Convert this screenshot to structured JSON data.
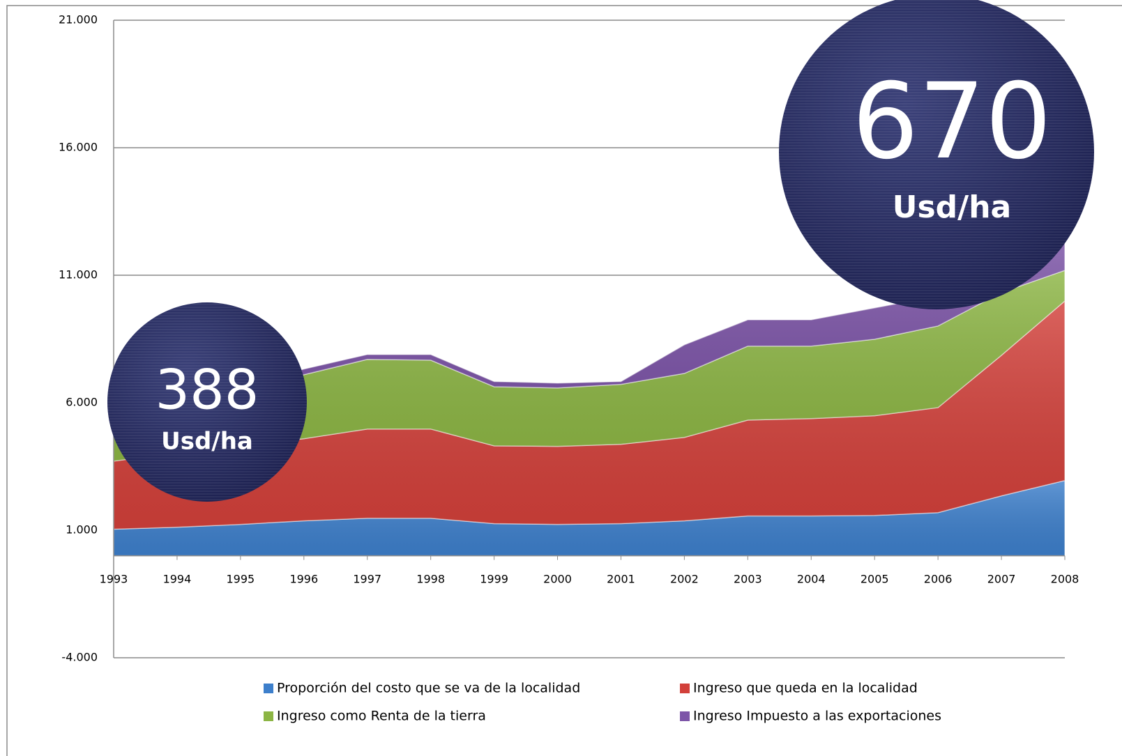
{
  "chart_data": {
    "type": "stacked_area",
    "categories": [
      "1993",
      "1994",
      "1995",
      "1996",
      "1997",
      "1998",
      "1999",
      "2000",
      "2001",
      "2002",
      "2003",
      "2004",
      "2005",
      "2006",
      "2007",
      "2008"
    ],
    "series": [
      {
        "name": "Proporción del costo que se va de la localidad",
        "color": "#3d7fcb",
        "values": [
          1040,
          1120,
          1230,
          1370,
          1470,
          1470,
          1260,
          1230,
          1260,
          1370,
          1560,
          1560,
          1580,
          1690,
          2350,
          2950
        ]
      },
      {
        "name": "Ingreso que queda en la localidad",
        "color": "#d2403a",
        "values": [
          2670,
          2920,
          3080,
          3220,
          3500,
          3500,
          3050,
          3060,
          3110,
          3270,
          3760,
          3820,
          3910,
          4120,
          5510,
          7040
        ]
      },
      {
        "name": "Ingreso como Renta de la tierra",
        "color": "#8cb544",
        "values": [
          1970,
          1910,
          2050,
          2510,
          2730,
          2700,
          2320,
          2290,
          2350,
          2510,
          2900,
          2840,
          3000,
          3200,
          2460,
          1200
        ]
      },
      {
        "name": "Ingreso Impuesto a las exportaciones",
        "color": "#7d55a8",
        "values": [
          0,
          100,
          200,
          220,
          190,
          220,
          200,
          190,
          110,
          1120,
          1030,
          1030,
          1230,
          1170,
          1360,
          1500
        ]
      }
    ],
    "ylim": [
      -4000,
      21000
    ],
    "yticks": [
      {
        "value": -4000,
        "label": "-4.000"
      },
      {
        "value": 1000,
        "label": "1.000"
      },
      {
        "value": 6000,
        "label": "6.000"
      },
      {
        "value": 11000,
        "label": "11.000"
      },
      {
        "value": 16000,
        "label": "16.000"
      },
      {
        "value": 21000,
        "label": "21.000"
      }
    ],
    "grid": true,
    "annotations": [
      {
        "value": "388",
        "unit": "Usd/ha"
      },
      {
        "value": "670",
        "unit": "Usd/ha"
      }
    ]
  }
}
